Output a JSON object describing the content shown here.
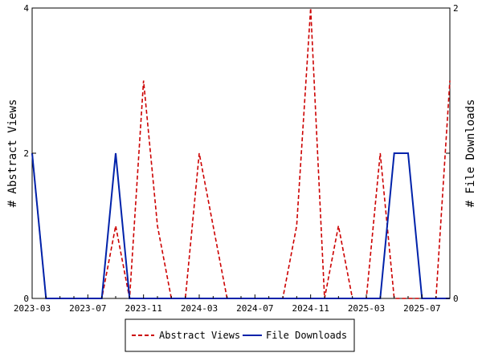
{
  "chart_data": {
    "type": "line",
    "x": [
      "2023-03",
      "2023-04",
      "2023-05",
      "2023-06",
      "2023-07",
      "2023-08",
      "2023-09",
      "2023-10",
      "2023-11",
      "2023-12",
      "2024-01",
      "2024-02",
      "2024-03",
      "2024-04",
      "2024-05",
      "2024-06",
      "2024-07",
      "2024-08",
      "2024-09",
      "2024-10",
      "2024-11",
      "2024-12",
      "2025-01",
      "2025-02",
      "2025-03",
      "2025-04",
      "2025-05",
      "2025-06",
      "2025-07",
      "2025-08",
      "2025-09"
    ],
    "x_tick_labels": [
      "2023-03",
      "2023-07",
      "2023-11",
      "2024-03",
      "2024-07",
      "2024-11",
      "2025-03",
      "2025-07"
    ],
    "series": [
      {
        "name": "Abstract Views",
        "axis": "left",
        "color": "#cc0000",
        "style": "dashed",
        "values": [
          2,
          0,
          0,
          0,
          0,
          0,
          1,
          0,
          3,
          1,
          0,
          0,
          2,
          1,
          0,
          0,
          0,
          0,
          0,
          1,
          4,
          0,
          1,
          0,
          0,
          2,
          0,
          0,
          0,
          0,
          3
        ]
      },
      {
        "name": "File Downloads",
        "axis": "right",
        "color": "#0022aa",
        "style": "solid",
        "values": [
          1,
          0,
          0,
          0,
          0,
          0,
          1,
          0,
          0,
          0,
          0,
          0,
          0,
          0,
          0,
          0,
          0,
          0,
          0,
          0,
          0,
          0,
          0,
          0,
          0,
          0,
          1,
          1,
          0,
          0,
          0
        ]
      }
    ],
    "ylabel_left": "# Abstract Views",
    "ylabel_right": "# File Downloads",
    "ylim_left": [
      0,
      4
    ],
    "ylim_right": [
      0,
      2
    ],
    "y_ticks_left": [
      "0",
      "2",
      "4"
    ],
    "y_ticks_right": [
      "0",
      "1",
      "2"
    ],
    "legend_position": "bottom-center",
    "grid": false
  }
}
